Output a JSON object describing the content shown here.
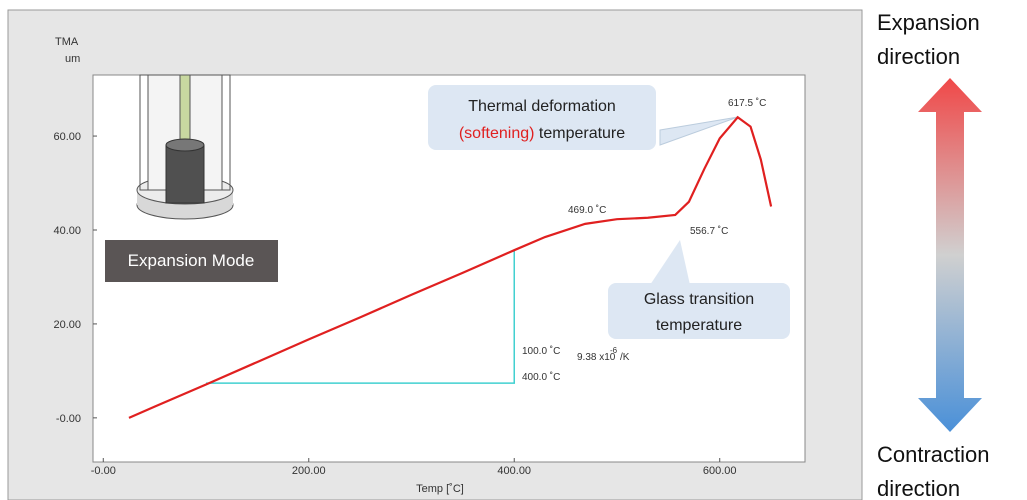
{
  "chart_data": {
    "type": "line",
    "x_label": "Temp  [˚C]",
    "y_label": "TMA",
    "y_unit": "um",
    "x": [
      25,
      50,
      100,
      150,
      200,
      250,
      300,
      350,
      400,
      430,
      469,
      500,
      530,
      556.7,
      570,
      585,
      600,
      617.5,
      630,
      640,
      650
    ],
    "values": [
      0,
      2.4,
      7.1,
      11.9,
      16.7,
      21.4,
      26.2,
      30.9,
      35.7,
      38.5,
      41.3,
      42.3,
      42.6,
      43.2,
      46,
      53,
      59.5,
      64,
      62,
      55,
      45
    ],
    "color": "#e02020",
    "xlim": [
      -10,
      683
    ],
    "ylim": [
      -9.4,
      73
    ],
    "xticks": [
      {
        "value": 0,
        "label": "-0.00"
      },
      {
        "value": 200,
        "label": "200.00"
      },
      {
        "value": 400,
        "label": "400.00"
      },
      {
        "value": 600,
        "label": "600.00"
      }
    ],
    "yticks": [
      {
        "value": 0,
        "label": "-0.00"
      },
      {
        "value": 20,
        "label": "20.00"
      },
      {
        "value": 40,
        "label": "40.00"
      },
      {
        "value": 60,
        "label": "60.00"
      }
    ],
    "tangent": {
      "x": [
        100,
        400,
        400
      ],
      "y": [
        7.4,
        7.4,
        35.7
      ],
      "color": "#40d0d0"
    },
    "annotations": [
      "617.5 ˚C",
      "469.0 ˚C",
      "556.7 ˚C",
      "100.0 ˚C",
      "400.0 ˚C",
      "9.38 x10",
      "-6",
      "/K"
    ]
  },
  "labels": {
    "callout1": [
      "Thermal deformation",
      "(softening)",
      "temperature"
    ],
    "callout2": [
      "Glass transition",
      "temperature"
    ],
    "mode": "Expansion Mode",
    "top": [
      "Expansion",
      "direction"
    ],
    "bottom": [
      "Contraction",
      "direction"
    ]
  }
}
